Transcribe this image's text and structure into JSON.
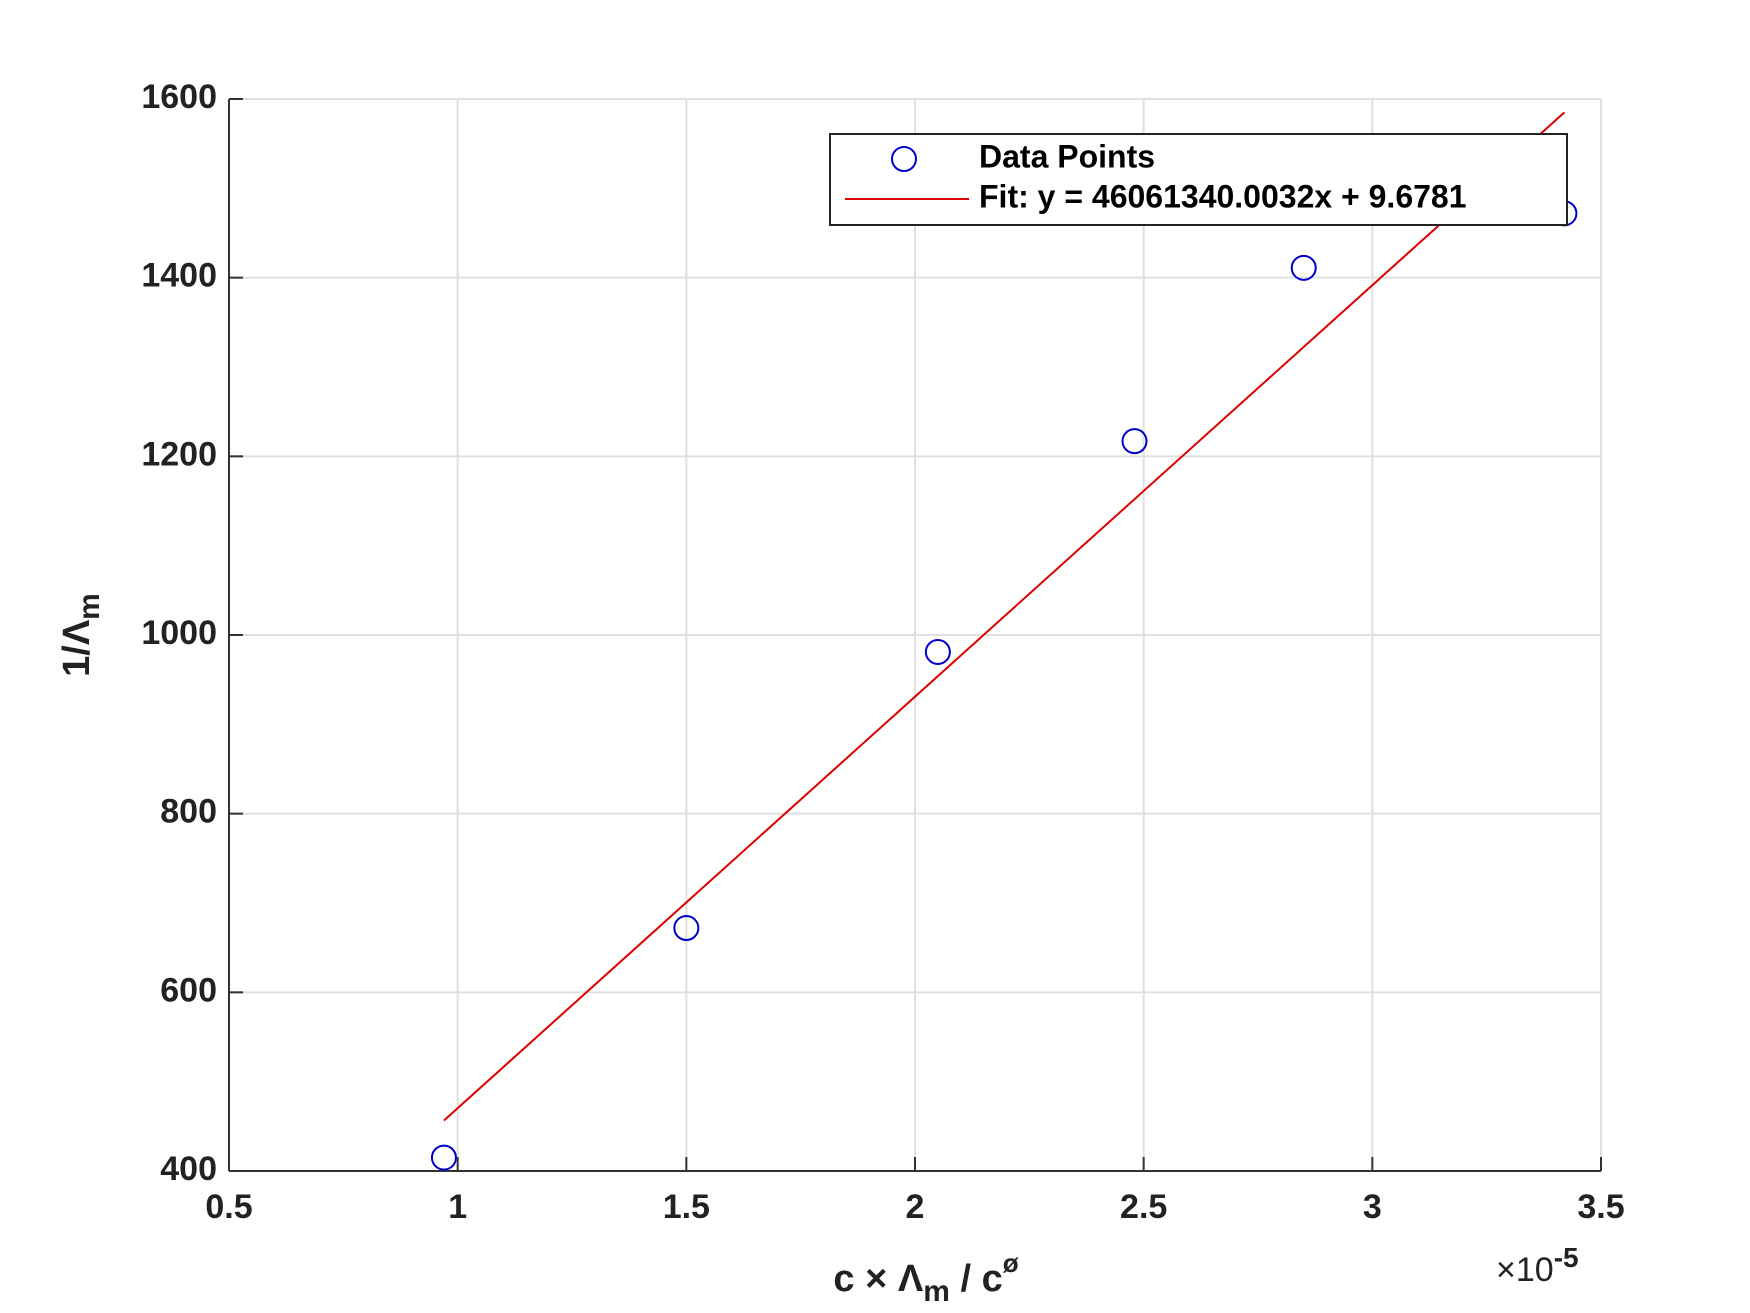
{
  "chart_data": {
    "type": "scatter",
    "xlabel": {
      "main": "c × Λ",
      "sub": "m",
      "rest": " / c",
      "sup": "ø"
    },
    "ylabel": {
      "main": "1/Λ",
      "sub": "m"
    },
    "x_multiplier": {
      "base": "×10",
      "exp": "-5"
    },
    "xlim": [
      0.5,
      3.5
    ],
    "xticks": [
      0.5,
      1,
      1.5,
      2,
      2.5,
      3,
      3.5
    ],
    "ylim": [
      400,
      1600
    ],
    "yticks": [
      400,
      600,
      800,
      1000,
      1200,
      1400,
      1600
    ],
    "grid": true,
    "legend": "northeast",
    "series": [
      {
        "name": "Data Points",
        "style": "marker",
        "color": "#0000cc",
        "x": [
          0.97,
          1.5,
          2.05,
          2.48,
          2.85,
          3.42
        ],
        "values": [
          415,
          672,
          981,
          1217,
          1411,
          1472
        ]
      },
      {
        "name": "Fit: y = 46061340.0032x + 9.6781",
        "style": "line",
        "color": "#dd0000",
        "x": [
          0.97,
          3.42
        ],
        "values": [
          456.5,
          1585
        ]
      }
    ]
  }
}
